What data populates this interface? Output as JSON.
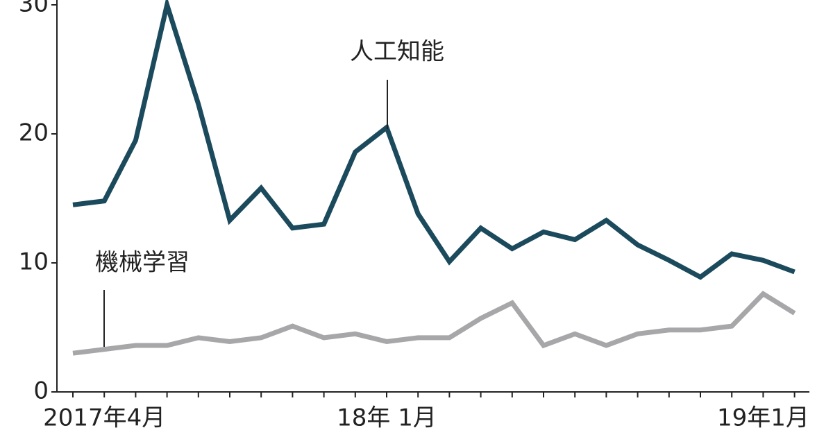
{
  "chart_data": {
    "type": "line",
    "categories": [
      null,
      "2017年4月",
      null,
      null,
      null,
      null,
      null,
      null,
      null,
      null,
      "18年 1月",
      null,
      null,
      null,
      null,
      null,
      null,
      null,
      null,
      null,
      null,
      null,
      "19年1月",
      null
    ],
    "series": [
      {
        "name": "人工知能",
        "color": "#1c4a5d",
        "values": [
          14.5,
          14.8,
          19.5,
          30,
          22.3,
          13.3,
          15.8,
          12.7,
          13.0,
          18.6,
          20.5,
          13.8,
          10.1,
          12.7,
          11.1,
          12.4,
          11.8,
          13.3,
          11.4,
          10.2,
          8.9,
          10.7,
          10.2,
          9.3
        ]
      },
      {
        "name": "機械学習",
        "color": "#a7a7aa",
        "values": [
          3.0,
          3.3,
          3.6,
          3.6,
          4.2,
          3.9,
          4.2,
          5.1,
          4.2,
          4.5,
          3.9,
          4.2,
          4.2,
          5.7,
          6.9,
          3.6,
          4.5,
          3.6,
          4.5,
          4.8,
          4.8,
          5.1,
          7.6,
          6.1
        ]
      }
    ],
    "ylim": [
      0,
      30
    ],
    "yticks": [
      0,
      10,
      20,
      30
    ]
  }
}
